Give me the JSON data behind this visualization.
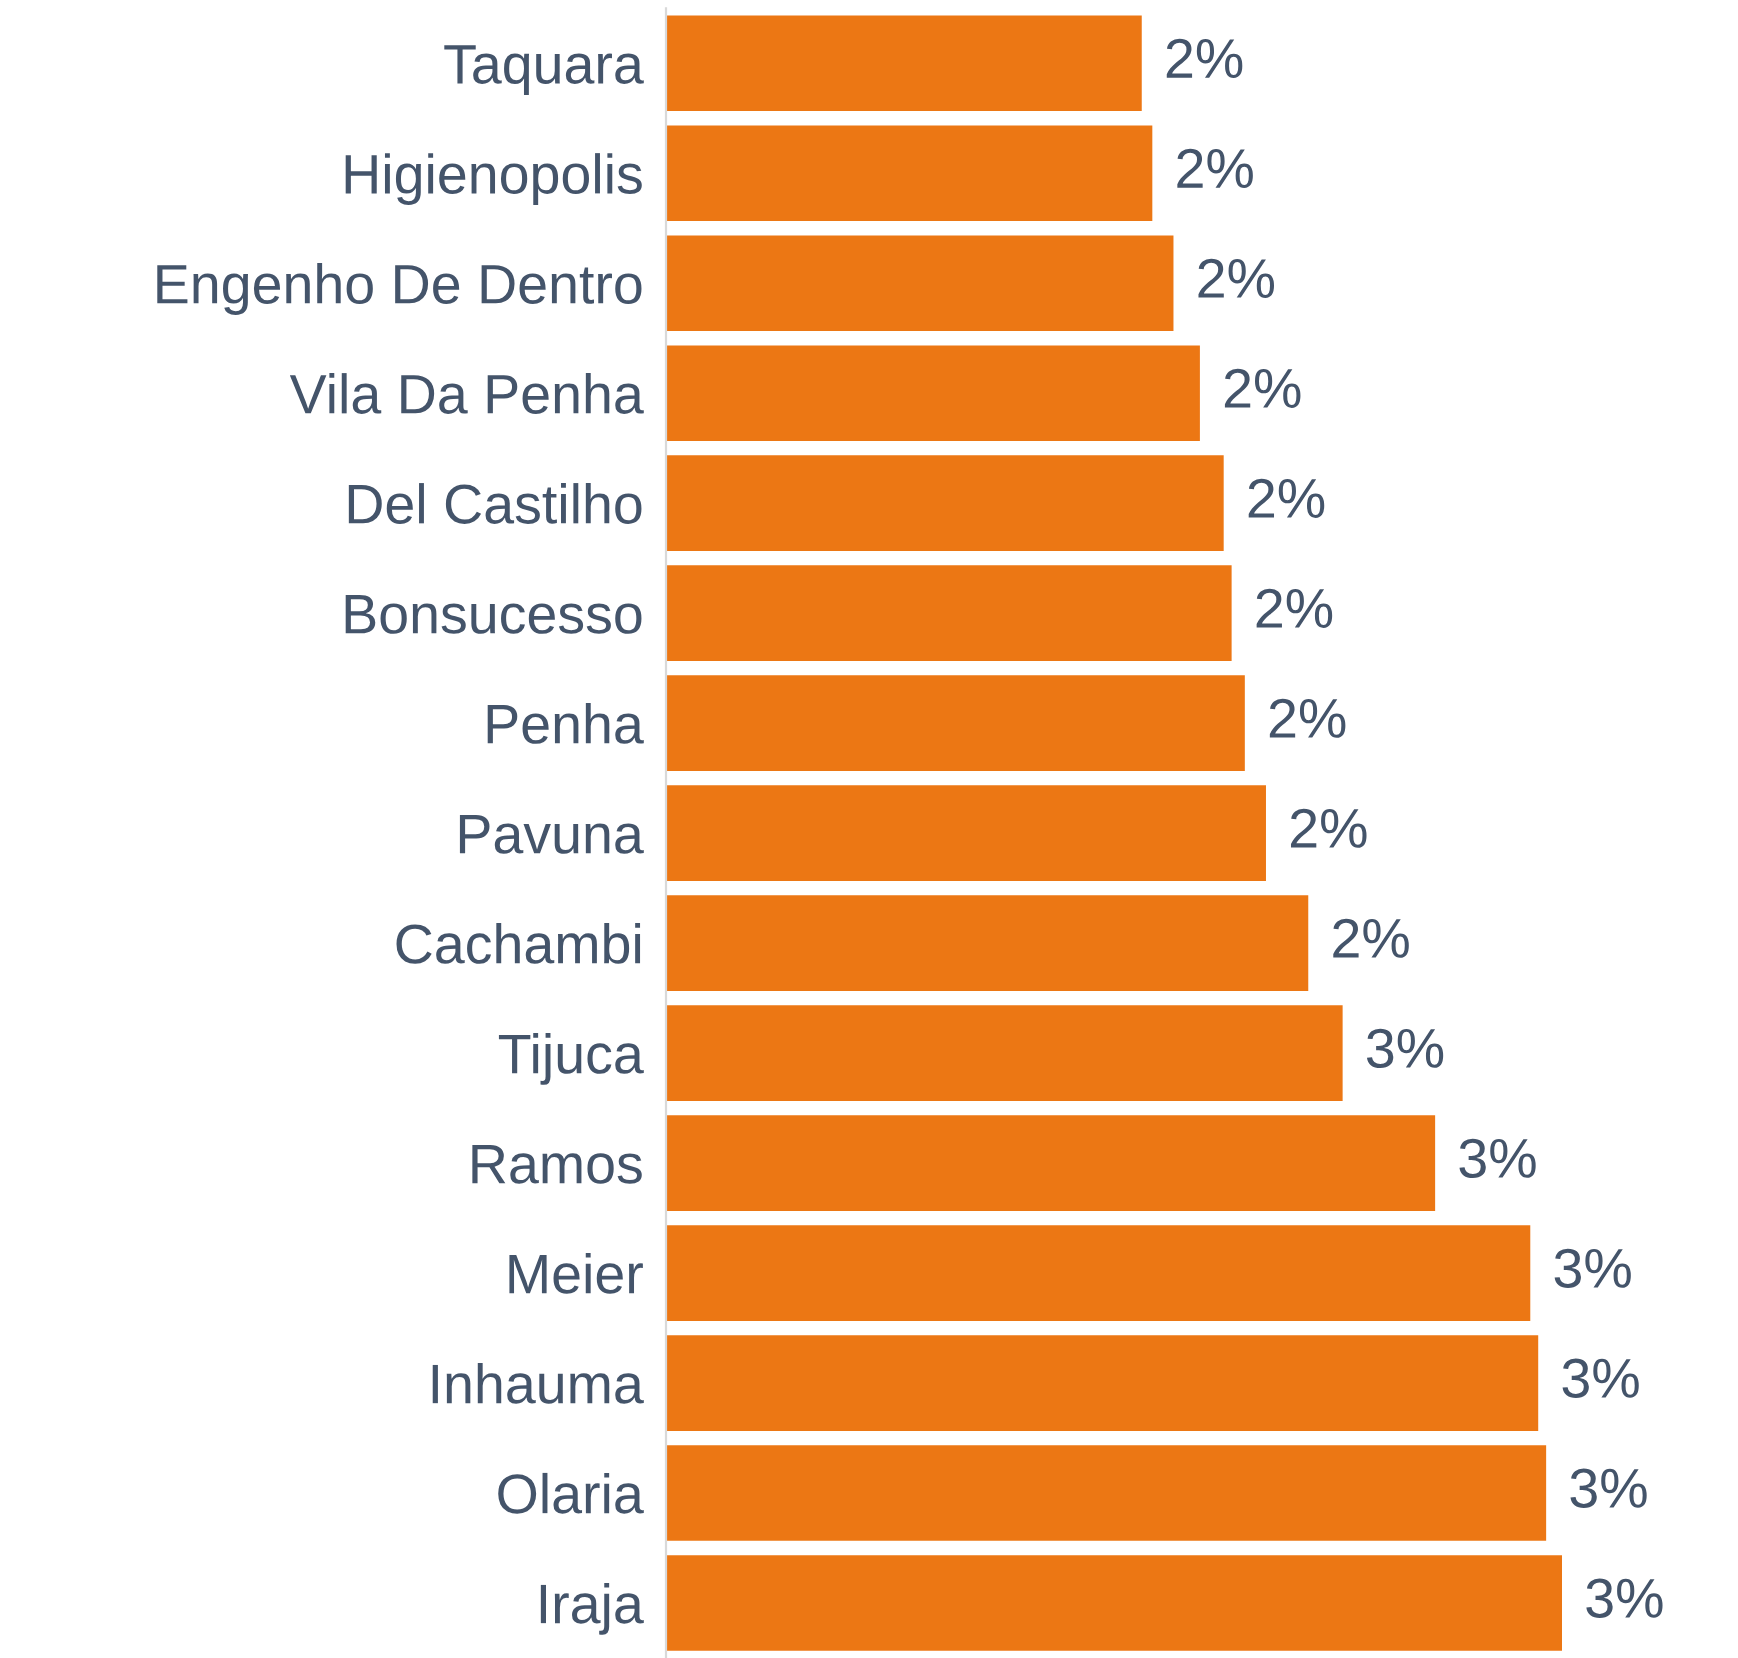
{
  "chart_data": {
    "type": "bar",
    "orientation": "horizontal",
    "categories": [
      "Taquara",
      "Higienopolis",
      "Engenho De Dentro",
      "Vila Da Penha",
      "Del Castilho",
      "Bonsucesso",
      "Penha",
      "Pavuna",
      "Cachambi",
      "Tijuca",
      "Ramos",
      "Meier",
      "Inhauma",
      "Olaria",
      "Iraja"
    ],
    "values": [
      1.8,
      1.84,
      1.92,
      2.02,
      2.11,
      2.14,
      2.19,
      2.27,
      2.43,
      2.56,
      2.91,
      3.27,
      3.3,
      3.33,
      3.39
    ],
    "value_labels": [
      "2%",
      "2%",
      "2%",
      "2%",
      "2%",
      "2%",
      "2%",
      "2%",
      "2%",
      "3%",
      "3%",
      "3%",
      "3%",
      "3%",
      "3%"
    ],
    "color": "#ec7714"
  }
}
